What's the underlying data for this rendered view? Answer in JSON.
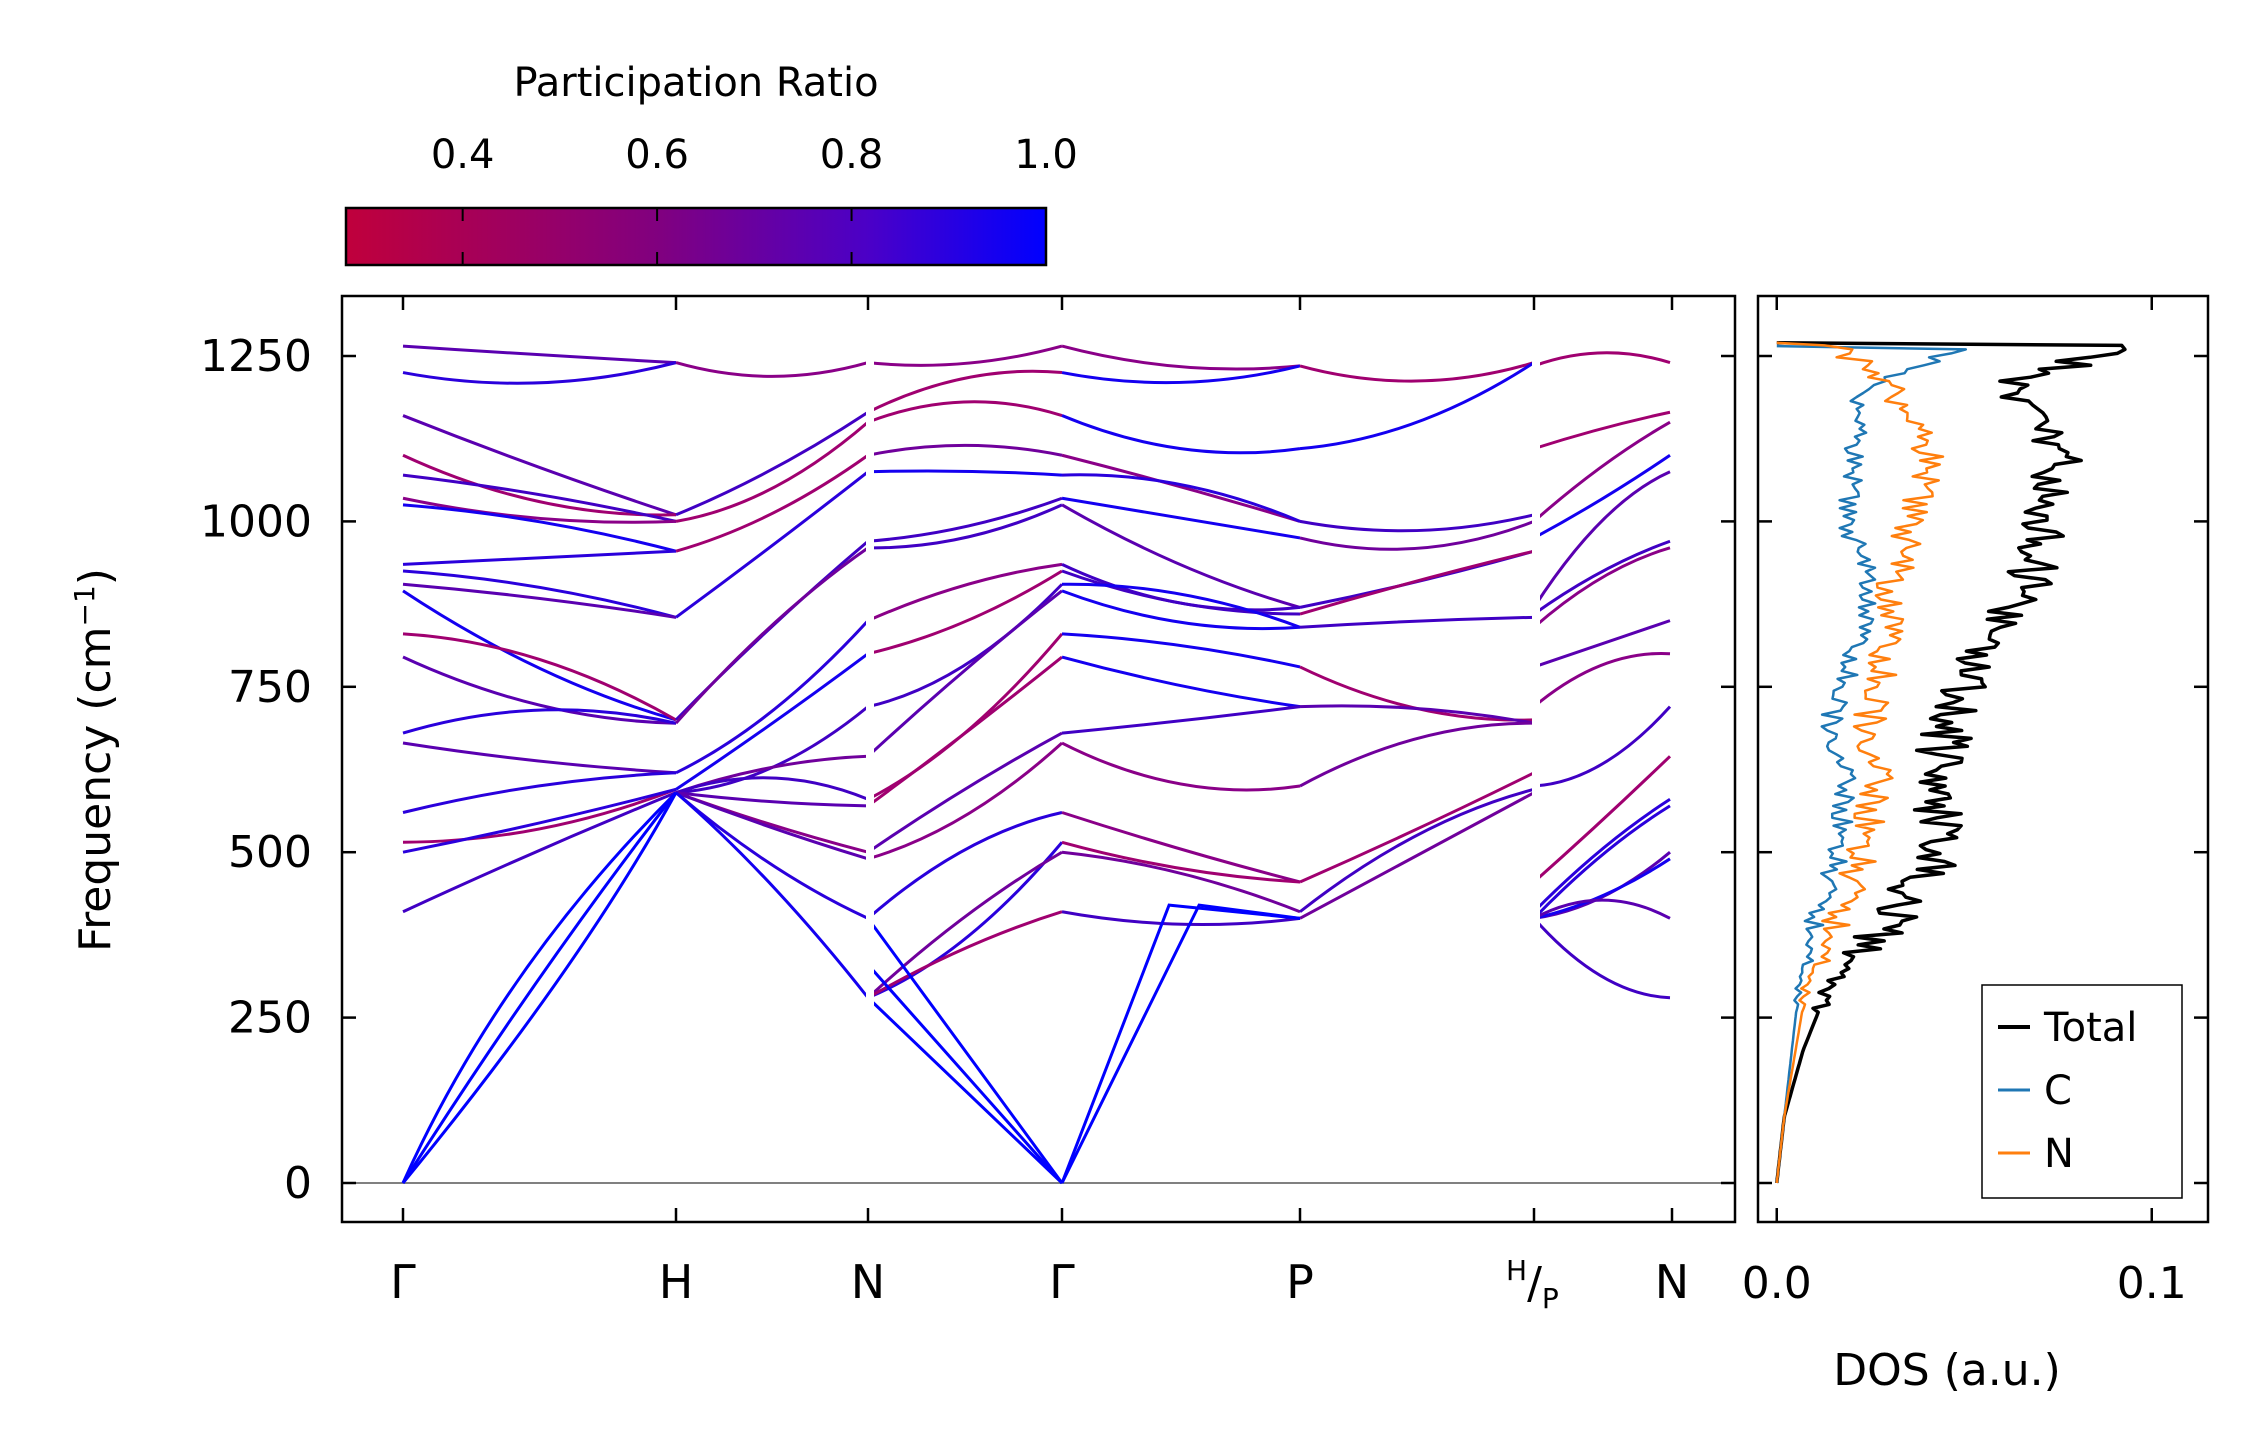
{
  "chart_data": [
    {
      "type": "line",
      "subtype": "phonon-band-structure",
      "title": "",
      "ylabel": "Frequency (cm",
      "ylabel_sup": "−1",
      "ylabel_close": ")",
      "ylim": [
        -65,
        1340
      ],
      "yticks": [
        0,
        250,
        500,
        750,
        1000,
        1250
      ],
      "path_labels": [
        "Γ",
        "H",
        "N",
        "Γ",
        "P",
        "H/P",
        "N"
      ],
      "path_label_parts": {
        "h": "H",
        "slash": "/",
        "p": "P"
      },
      "zero_line": 0,
      "colorbar": {
        "label": "Participation Ratio",
        "range": [
          0.28,
          1.0
        ],
        "ticks": [
          "0.4",
          "0.6",
          "0.8",
          "1.0"
        ],
        "tick_values": [
          0.4,
          0.6,
          0.8,
          1.0
        ],
        "colors": {
          "low": "#c0003c",
          "mid": "#800080",
          "high": "#0000ff"
        }
      },
      "acoustic_branches": {
        "gamma_to_H": [
          [
            0,
            0
          ],
          [
            1,
            590
          ]
        ],
        "gamma_to_P": [
          [
            0,
            0
          ],
          [
            0.45,
            420
          ],
          [
            1,
            400
          ]
        ]
      },
      "band_levels_at_gamma": [
        1265,
        1225,
        1160,
        1100,
        1070,
        1035,
        1025,
        935,
        925,
        905,
        895,
        830,
        795,
        680,
        665,
        560,
        515,
        500,
        410
      ],
      "band_levels_at_H": [
        1240,
        1010,
        1000,
        955,
        855,
        700,
        695,
        620,
        595,
        590
      ],
      "band_levels_at_N": [
        1240,
        1165,
        1150,
        1100,
        1075,
        970,
        960,
        850,
        800,
        720,
        645,
        580,
        570,
        500,
        490,
        400,
        280
      ],
      "band_levels_at_P": [
        1235,
        1110,
        1000,
        975,
        870,
        860,
        840,
        780,
        720,
        600,
        455,
        410,
        400
      ]
    },
    {
      "type": "line",
      "subtype": "density-of-states",
      "xlabel": "DOS (a.u.)",
      "xlim": [
        -0.005,
        0.115
      ],
      "xticks": [
        "0.0",
        "0.1"
      ],
      "xtick_values": [
        0.0,
        0.1
      ],
      "ylim": [
        -65,
        1340
      ],
      "series": [
        {
          "name": "Total",
          "color": "#000000",
          "points": [
            [
              0.0,
              0
            ],
            [
              0.002,
              100
            ],
            [
              0.007,
              200
            ],
            [
              0.014,
              300
            ],
            [
              0.03,
              400
            ],
            [
              0.042,
              500
            ],
            [
              0.04,
              600
            ],
            [
              0.045,
              700
            ],
            [
              0.053,
              800
            ],
            [
              0.066,
              900
            ],
            [
              0.07,
              1000
            ],
            [
              0.075,
              1100
            ],
            [
              0.058,
              1200
            ],
            [
              0.092,
              1270
            ]
          ]
        },
        {
          "name": "C",
          "color": "#1f77b4",
          "points": [
            [
              0.0,
              0
            ],
            [
              0.002,
              100
            ],
            [
              0.004,
              200
            ],
            [
              0.006,
              300
            ],
            [
              0.01,
              400
            ],
            [
              0.016,
              500
            ],
            [
              0.018,
              600
            ],
            [
              0.014,
              700
            ],
            [
              0.02,
              800
            ],
            [
              0.025,
              900
            ],
            [
              0.018,
              1000
            ],
            [
              0.02,
              1100
            ],
            [
              0.022,
              1200
            ],
            [
              0.05,
              1265
            ]
          ]
        },
        {
          "name": "N",
          "color": "#ff7f0e",
          "points": [
            [
              0.0,
              0
            ],
            [
              0.002,
              100
            ],
            [
              0.005,
              200
            ],
            [
              0.008,
              300
            ],
            [
              0.016,
              400
            ],
            [
              0.022,
              500
            ],
            [
              0.026,
              600
            ],
            [
              0.024,
              700
            ],
            [
              0.028,
              800
            ],
            [
              0.03,
              900
            ],
            [
              0.035,
              1000
            ],
            [
              0.04,
              1100
            ],
            [
              0.03,
              1200
            ],
            [
              0.014,
              1270
            ]
          ]
        }
      ],
      "legend": {
        "position": "lower-right",
        "entries": [
          "Total",
          "C",
          "N"
        ]
      }
    }
  ]
}
